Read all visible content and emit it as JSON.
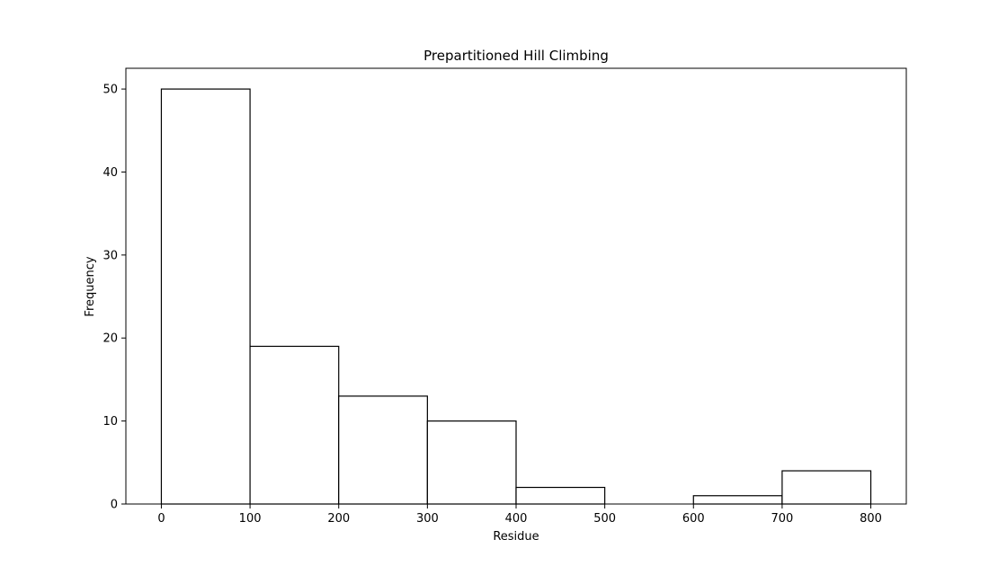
{
  "chart_data": {
    "type": "bar",
    "title": "Prepartitioned Hill Climbing",
    "xlabel": "Residue",
    "ylabel": "Frequency",
    "bins": [
      {
        "start": 0,
        "end": 100,
        "value": 50
      },
      {
        "start": 100,
        "end": 200,
        "value": 19
      },
      {
        "start": 200,
        "end": 300,
        "value": 13
      },
      {
        "start": 300,
        "end": 400,
        "value": 10
      },
      {
        "start": 400,
        "end": 500,
        "value": 2
      },
      {
        "start": 500,
        "end": 600,
        "value": 0
      },
      {
        "start": 600,
        "end": 700,
        "value": 1
      },
      {
        "start": 700,
        "end": 800,
        "value": 4
      }
    ],
    "xlim": [
      -40,
      840
    ],
    "ylim": [
      0,
      52.5
    ],
    "xticks": [
      0,
      100,
      200,
      300,
      400,
      500,
      600,
      700,
      800
    ],
    "yticks": [
      0,
      10,
      20,
      30,
      40,
      50
    ],
    "grid": false,
    "bar_fill": "#ffffff",
    "bar_edge": "#000000"
  }
}
